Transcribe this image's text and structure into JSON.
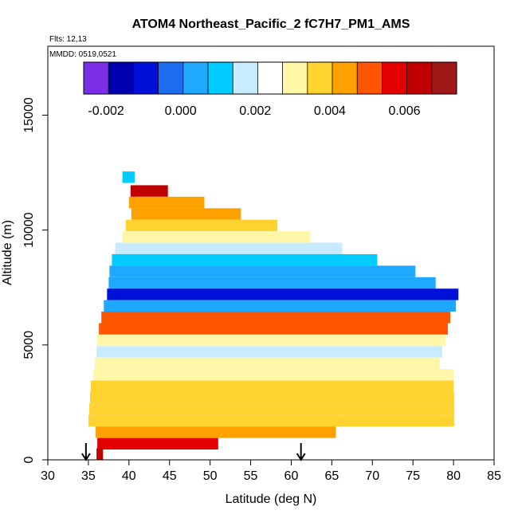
{
  "chart_data": {
    "type": "heatmap",
    "title": "ATOM4 Northeast_Pacific_2 fC7H7_PM1_AMS",
    "flights_text": "Flts: 12,13",
    "dates_text": "MMDD: 0519,0521",
    "xlabel": "Latitude (deg N)",
    "ylabel": "Altitude (m)",
    "xlim": [
      30,
      85
    ],
    "ylim": [
      0,
      18000
    ],
    "xticks": [
      "30",
      "35",
      "40",
      "45",
      "50",
      "55",
      "60",
      "65",
      "70",
      "75",
      "80",
      "85"
    ],
    "yticks": [
      "0",
      "5000",
      "10000",
      "15000"
    ],
    "ytick_values": [
      0,
      5000,
      10000,
      15000
    ],
    "colorbar": {
      "min": -0.0026,
      "max": 0.0074,
      "ticks": [
        "-0.002",
        "0.000",
        "0.002",
        "0.004",
        "0.006"
      ],
      "tick_values": [
        -0.002,
        0.0,
        0.002,
        0.004,
        0.006
      ],
      "colors": [
        "#7b2ee8",
        "#0000b0",
        "#0010d8",
        "#1e6cf0",
        "#1fa8ff",
        "#00ccff",
        "#c8ecff",
        "#ffffff",
        "#fff6a8",
        "#ffd430",
        "#ffa200",
        "#ff5500",
        "#e40000",
        "#c00000",
        "#a01818"
      ]
    },
    "arrows_at_latitude": [
      34.7,
      61.2
    ],
    "layers": [
      {
        "alt": 12300,
        "lat_start": 39.2,
        "lat_end": 40.7,
        "v": 0.0012
      },
      {
        "alt": 11700,
        "lat_start": 40.2,
        "lat_end": 44.8,
        "v": 0.0062
      },
      {
        "alt": 11200,
        "lat_start": 40.0,
        "lat_end": 49.3,
        "v": 0.0047
      },
      {
        "alt": 10700,
        "lat_start": 40.3,
        "lat_end": 53.8,
        "v": 0.0044
      },
      {
        "alt": 10200,
        "lat_start": 39.6,
        "lat_end": 58.3,
        "v": 0.0036
      },
      {
        "alt": 9700,
        "lat_start": 39.2,
        "lat_end": 62.3,
        "v": 0.0028
      },
      {
        "alt": 9200,
        "lat_start": 38.3,
        "lat_end": 66.3,
        "v": 0.0019
      },
      {
        "alt": 8700,
        "lat_start": 37.9,
        "lat_end": 70.6,
        "v": 0.0009
      },
      {
        "alt": 8200,
        "lat_start": 37.6,
        "lat_end": 75.3,
        "v": 0.0007
      },
      {
        "alt": 7700,
        "lat_start": 37.5,
        "lat_end": 77.8,
        "v": 0.0002
      },
      {
        "alt": 7200,
        "lat_start": 37.3,
        "lat_end": 80.6,
        "v": -0.0012
      },
      {
        "alt": 6700,
        "lat_start": 36.9,
        "lat_end": 80.3,
        "v": 0.0006
      },
      {
        "alt": 6200,
        "lat_start": 36.6,
        "lat_end": 79.6,
        "v": 0.0048
      },
      {
        "alt": 5700,
        "lat_start": 36.3,
        "lat_end": 79.3,
        "v": 0.0052
      },
      {
        "alt": 5200,
        "lat_start": 36.1,
        "lat_end": 79.0,
        "v": 0.0032
      },
      {
        "alt": 4700,
        "lat_start": 36.0,
        "lat_end": 78.6,
        "v": 0.0015
      },
      {
        "alt": 4200,
        "lat_start": 35.8,
        "lat_end": 78.3,
        "v": 0.0031
      },
      {
        "alt": 3700,
        "lat_start": 35.6,
        "lat_end": 80.0,
        "v": 0.0033
      },
      {
        "alt": 3200,
        "lat_start": 35.3,
        "lat_end": 80.0,
        "v": 0.0036
      },
      {
        "alt": 2700,
        "lat_start": 35.2,
        "lat_end": 80.1,
        "v": 0.0038
      },
      {
        "alt": 2200,
        "lat_start": 35.1,
        "lat_end": 80.1,
        "v": 0.0037
      },
      {
        "alt": 1700,
        "lat_start": 35.0,
        "lat_end": 80.1,
        "v": 0.0035
      },
      {
        "alt": 1200,
        "lat_start": 35.9,
        "lat_end": 65.5,
        "v": 0.0042
      },
      {
        "alt": 700,
        "lat_start": 36.1,
        "lat_end": 51.0,
        "v": 0.0058
      },
      {
        "alt": 250,
        "lat_start": 36.0,
        "lat_end": 36.8,
        "v": 0.0066
      }
    ]
  }
}
